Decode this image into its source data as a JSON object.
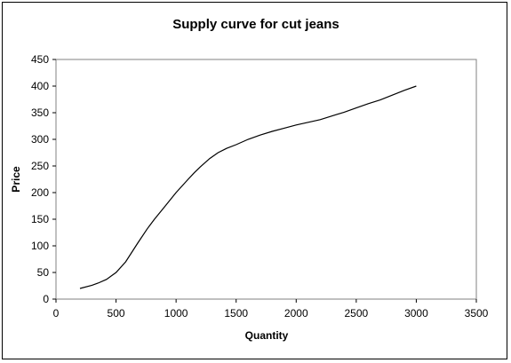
{
  "chart_data": {
    "type": "line",
    "title": "Supply curve for cut jeans",
    "xlabel": "Quantity",
    "ylabel": "Price",
    "xlim": [
      0,
      3500
    ],
    "ylim": [
      0,
      450
    ],
    "xticks": [
      "0",
      "500",
      "1000",
      "1500",
      "2000",
      "2500",
      "3000",
      "3500"
    ],
    "yticks": [
      "0",
      "50",
      "100",
      "150",
      "200",
      "250",
      "300",
      "350",
      "400",
      "450"
    ],
    "grid": false,
    "legend": "none",
    "line_color": "#000000",
    "series": [
      {
        "x": [
          200,
          300,
          350,
          420,
          500,
          580,
          680,
          760,
          820,
          900,
          1000,
          1100,
          1150,
          1200,
          1280,
          1350,
          1420,
          1500,
          1600,
          1700,
          1800,
          1900,
          2000,
          2100,
          2200,
          2300,
          2400,
          2500,
          2600,
          2700,
          2800,
          2900,
          3000
        ],
        "y": [
          20,
          26,
          30,
          37,
          50,
          70,
          105,
          132,
          150,
          172,
          200,
          225,
          237,
          248,
          264,
          275,
          283,
          290,
          300,
          308,
          315,
          321,
          327,
          332,
          337,
          344,
          351,
          359,
          367,
          374,
          383,
          392,
          400
        ]
      }
    ]
  }
}
